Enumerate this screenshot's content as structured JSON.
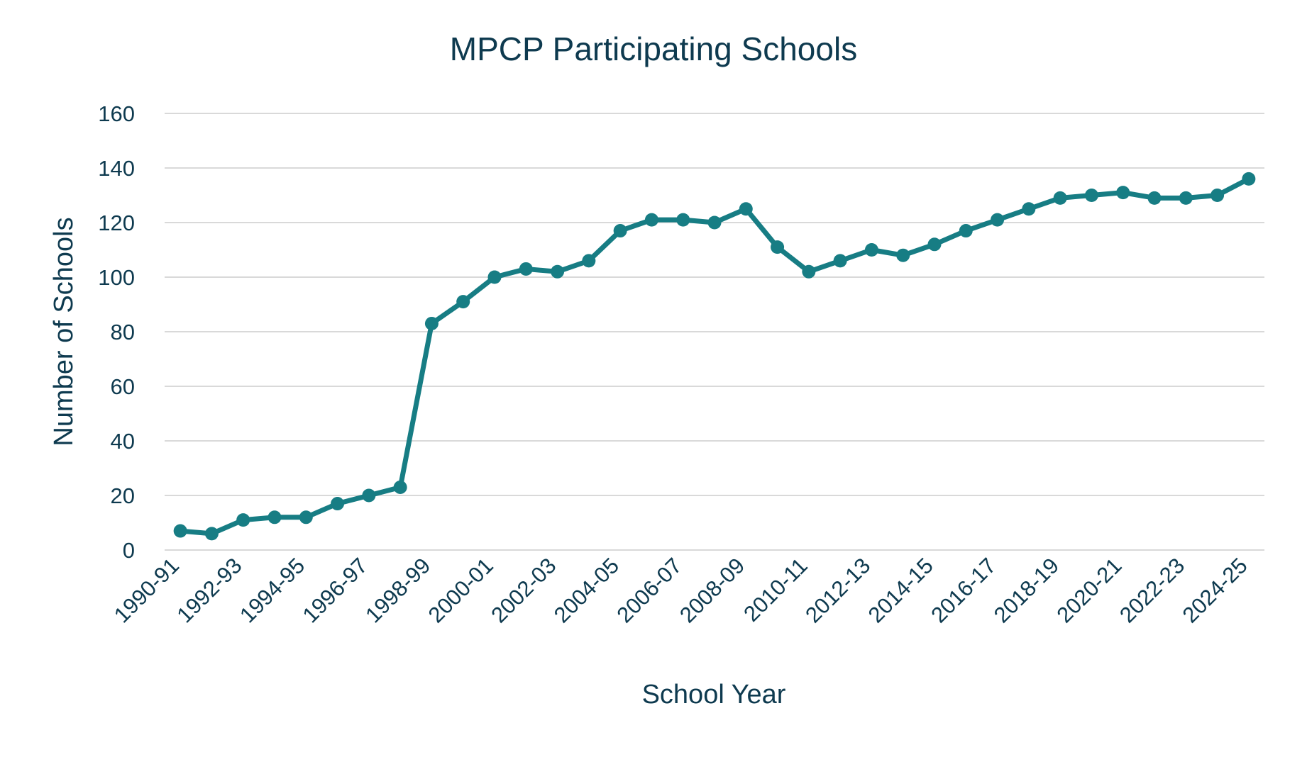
{
  "chart_data": {
    "type": "line",
    "title": "MPCP Participating Schools",
    "xlabel": "School Year",
    "ylabel": "Number of Schools",
    "ylim": [
      0,
      160
    ],
    "yticks": [
      0,
      20,
      40,
      60,
      80,
      100,
      120,
      140,
      160
    ],
    "grid": true,
    "categories": [
      "1990-91",
      "1991-92",
      "1992-93",
      "1993-94",
      "1994-95",
      "1995-96",
      "1996-97",
      "1997-98",
      "1998-99",
      "1999-00",
      "2000-01",
      "2001-02",
      "2002-03",
      "2003-04",
      "2004-05",
      "2005-06",
      "2006-07",
      "2007-08",
      "2008-09",
      "2009-10",
      "2010-11",
      "2011-12",
      "2012-13",
      "2013-14",
      "2014-15",
      "2015-16",
      "2016-17",
      "2017-18",
      "2018-19",
      "2019-20",
      "2020-21",
      "2021-22",
      "2022-23",
      "2023-24",
      "2024-25"
    ],
    "shown_tick_labels": [
      "1990-91",
      "1992-93",
      "1994-95",
      "1996-97",
      "1998-99",
      "2000-01",
      "2002-03",
      "2004-05",
      "2006-07",
      "2008-09",
      "2010-11",
      "2012-13",
      "2014-15",
      "2016-17",
      "2018-19",
      "2020-21",
      "2022-23",
      "2024-25"
    ],
    "series": [
      {
        "name": "Participating Schools",
        "color": "#177d84",
        "values": [
          7,
          6,
          11,
          12,
          12,
          17,
          20,
          23,
          83,
          91,
          100,
          103,
          102,
          106,
          117,
          121,
          121,
          120,
          125,
          111,
          102,
          106,
          110,
          108,
          112,
          117,
          121,
          125,
          129,
          130,
          131,
          129,
          129,
          130,
          136
        ]
      }
    ]
  }
}
